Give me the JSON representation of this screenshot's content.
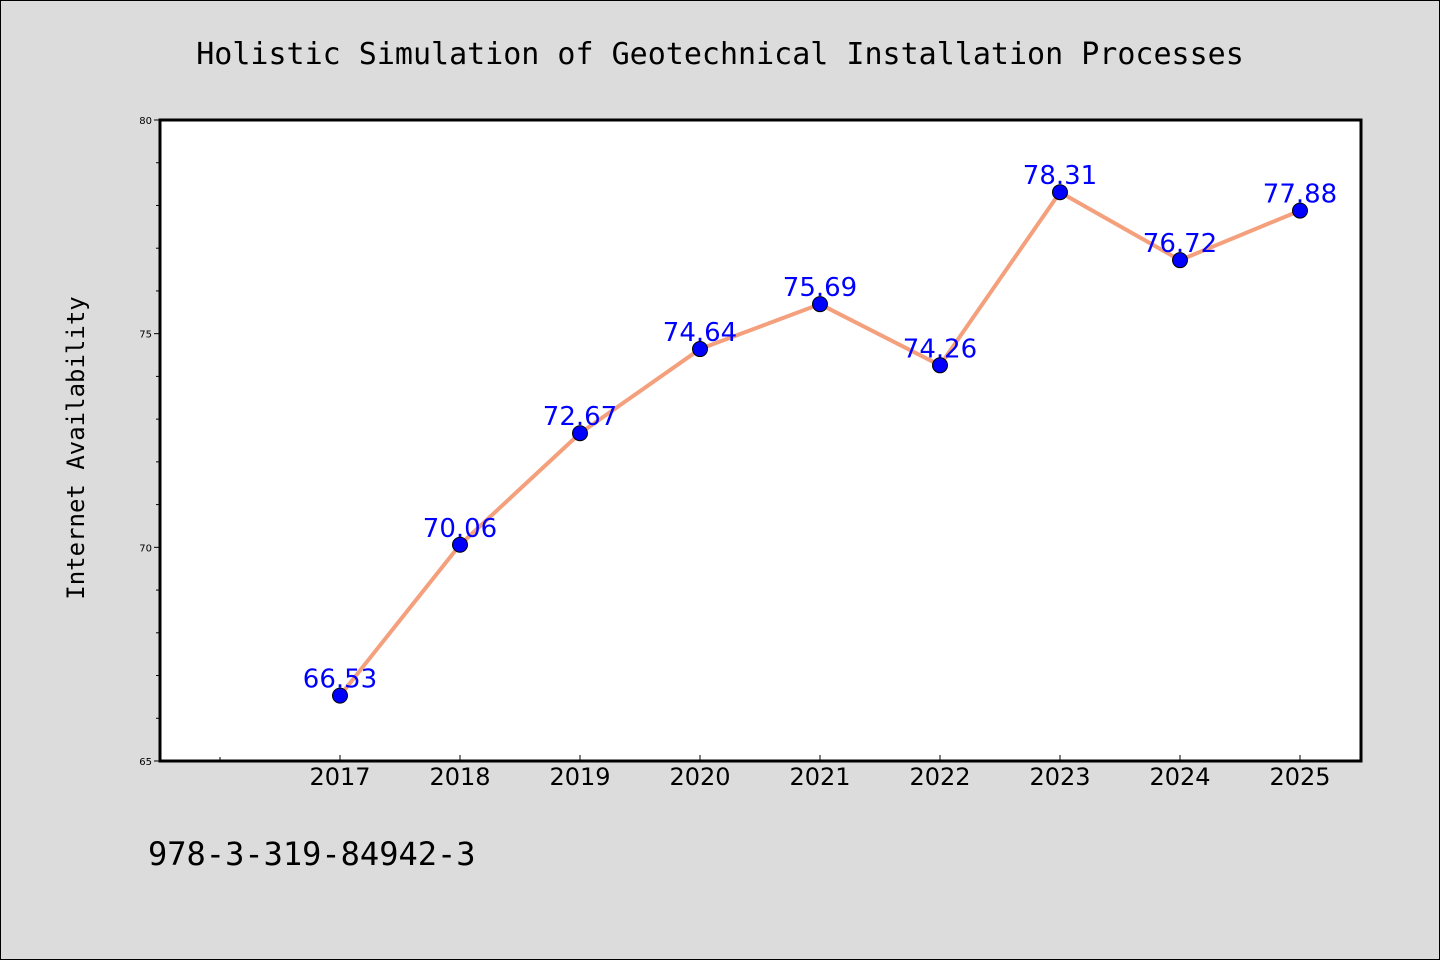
{
  "chart_data": {
    "type": "line",
    "title": "Holistic Simulation of Geotechnical Installation Processes",
    "xlabel": "",
    "ylabel": "Internet Availability",
    "categories": [
      "2017",
      "2018",
      "2019",
      "2020",
      "2021",
      "2022",
      "2023",
      "2024",
      "2025"
    ],
    "series": [
      {
        "values": [
          66.53,
          70.06,
          72.67,
          74.64,
          75.69,
          74.26,
          78.31,
          76.72,
          77.88
        ],
        "labels": [
          "66.53",
          "70.06",
          "72.67",
          "74.64",
          "75.69",
          "74.26",
          "78.31",
          "76.72",
          "77.88"
        ]
      }
    ],
    "ylim": [
      65,
      80
    ],
    "yticks": [
      "65",
      "70",
      "75",
      "80"
    ],
    "grid": false,
    "legend": "none",
    "colors": {
      "line": "#f4a07c",
      "marker": "#0000ff",
      "data_label": "#0000ff",
      "background": "#dcdcdc",
      "plot_background": "#ffffff"
    }
  },
  "footnote": "978-3-319-84942-3"
}
